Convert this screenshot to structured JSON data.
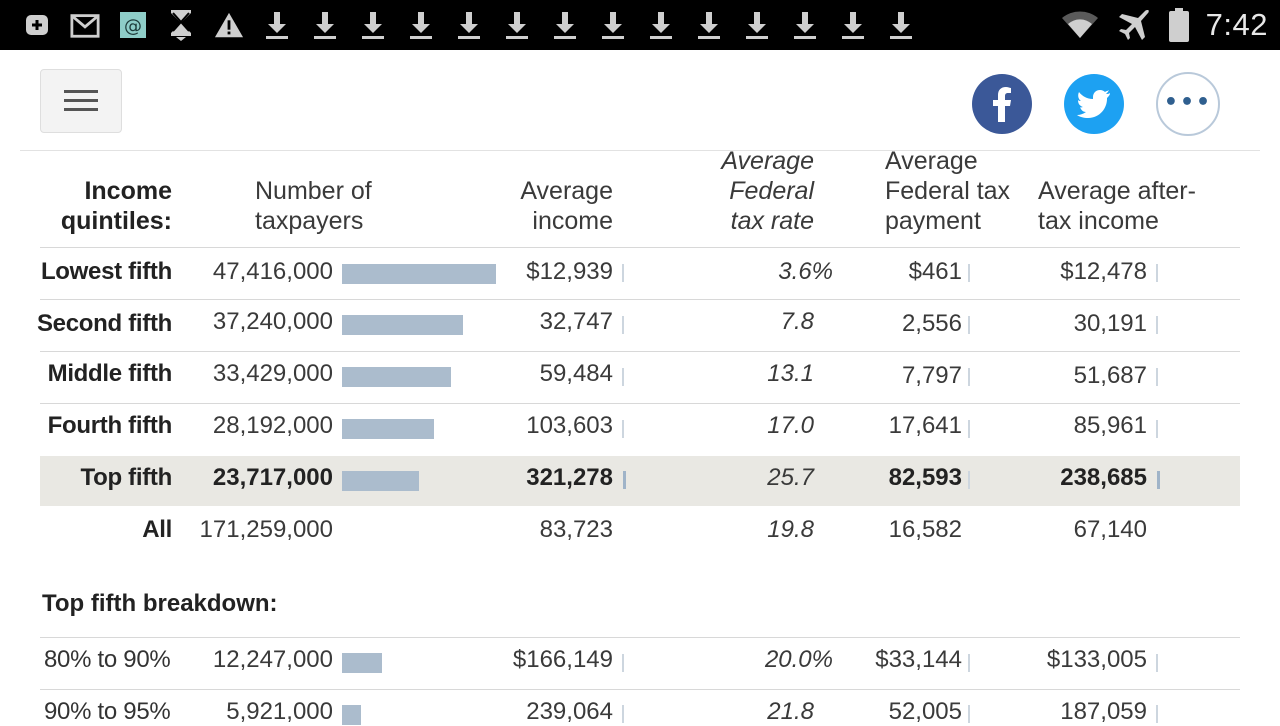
{
  "status_bar": {
    "time": "7:42",
    "notification_icons": [
      "add-box-icon",
      "gmail-icon",
      "email-app-icon",
      "hourglass-download-icon",
      "warning-icon",
      "download-icon",
      "download-icon",
      "download-icon",
      "download-icon",
      "download-icon",
      "download-icon",
      "download-icon",
      "download-icon",
      "download-icon",
      "download-icon",
      "download-icon",
      "download-icon",
      "download-icon",
      "download-icon",
      "download-icon"
    ],
    "system_icons": [
      "wifi-icon",
      "airplane-mode-icon",
      "battery-icon"
    ]
  },
  "header": {
    "share_more_label": "•••"
  },
  "table": {
    "columns": {
      "quintile_line1": "Income",
      "quintile_line2": "quintiles:",
      "taxpayers_line1": "Number of",
      "taxpayers_line2": "taxpayers",
      "income_line1": "Average",
      "income_line2": "income",
      "rate_line1": "Average",
      "rate_line2": "Federal",
      "rate_line3": "tax rate",
      "payment_line1": "Average",
      "payment_line2": "Federal tax",
      "payment_line3": "payment",
      "after_line1": "Average after-",
      "after_line2": "tax income"
    },
    "rows": [
      {
        "label": "Lowest fifth",
        "taxpayers": "47,416,000",
        "taxpayers_value": 47416000,
        "income": "$12,939",
        "rate": "3.6%",
        "payment": "$461",
        "after_tax": "$12,478"
      },
      {
        "label": "Second fifth",
        "taxpayers": "37,240,000",
        "taxpayers_value": 37240000,
        "income": "32,747",
        "rate": "7.8",
        "payment": "2,556",
        "after_tax": "30,191"
      },
      {
        "label": "Middle fifth",
        "taxpayers": "33,429,000",
        "taxpayers_value": 33429000,
        "income": "59,484",
        "rate": "13.1",
        "payment": "7,797",
        "after_tax": "51,687"
      },
      {
        "label": "Fourth fifth",
        "taxpayers": "28,192,000",
        "taxpayers_value": 28192000,
        "income": "103,603",
        "rate": "17.0",
        "payment": "17,641",
        "after_tax": "85,961"
      },
      {
        "label": "Top fifth",
        "taxpayers": "23,717,000",
        "taxpayers_value": 23717000,
        "income": "321,278",
        "rate": "25.7",
        "payment": "82,593",
        "after_tax": "238,685"
      },
      {
        "label": "All",
        "taxpayers": "171,259,000",
        "income": "83,723",
        "rate": "19.8",
        "payment": "16,582",
        "after_tax": "67,140"
      }
    ],
    "breakdown_title": "Top fifth breakdown:",
    "breakdown_rows": [
      {
        "label": "80% to 90%",
        "taxpayers": "12,247,000",
        "taxpayers_value": 12247000,
        "income": "$166,149",
        "rate": "20.0%",
        "payment": "$33,144",
        "after_tax": "$133,005"
      },
      {
        "label": "90% to 95%",
        "taxpayers": "5,921,000",
        "taxpayers_value": 5921000,
        "income": "239,064",
        "rate": "21.8",
        "payment": "52,005",
        "after_tax": "187,059"
      }
    ],
    "bar_scale_max": 47416000,
    "colors": {
      "bar": "#abbccd",
      "highlight_row": "#e9e8e3",
      "facebook": "#3b5898",
      "twitter": "#1da1f2"
    }
  }
}
